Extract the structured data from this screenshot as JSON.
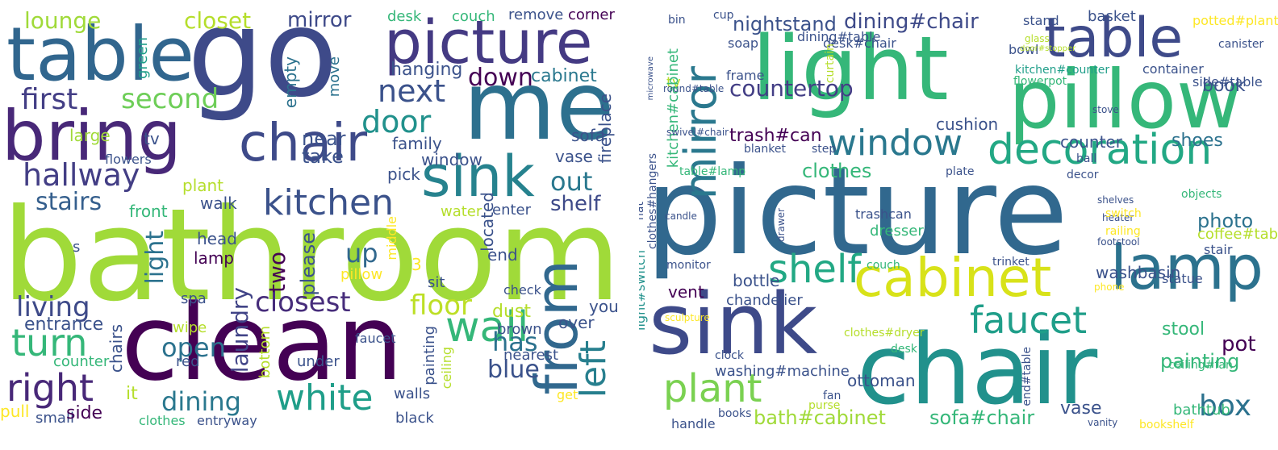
{
  "left_cloud": {
    "words": [
      {
        "text": "bathroom",
        "color": "#a0da39"
      },
      {
        "text": "clean",
        "color": "#440154"
      },
      {
        "text": "go",
        "color": "#3e4a89"
      },
      {
        "text": "me",
        "color": "#2d708e"
      },
      {
        "text": "table",
        "color": "#31668e"
      },
      {
        "text": "bring",
        "color": "#482878"
      },
      {
        "text": "picture",
        "color": "#443a83"
      },
      {
        "text": "sink",
        "color": "#26828e"
      },
      {
        "text": "chair",
        "color": "#3e4a89"
      },
      {
        "text": "from",
        "color": "#31688e"
      },
      {
        "text": "kitchen",
        "color": "#3b528b"
      },
      {
        "text": "hallway",
        "color": "#433e85"
      },
      {
        "text": "right",
        "color": "#482878"
      },
      {
        "text": "wall",
        "color": "#35b779"
      },
      {
        "text": "white",
        "color": "#1f9e89"
      },
      {
        "text": "turn",
        "color": "#35b779"
      },
      {
        "text": "left",
        "color": "#277f8e"
      },
      {
        "text": "dining",
        "color": "#2a788e"
      },
      {
        "text": "closest",
        "color": "#472d7b"
      },
      {
        "text": "door",
        "color": "#21918c"
      },
      {
        "text": "next",
        "color": "#3b528b"
      },
      {
        "text": "first",
        "color": "#433e85"
      },
      {
        "text": "second",
        "color": "#6ece58"
      },
      {
        "text": "living",
        "color": "#3e4a89"
      },
      {
        "text": "open",
        "color": "#2c728e"
      },
      {
        "text": "floor",
        "color": "#bddf26"
      },
      {
        "text": "stairs",
        "color": "#355f8d"
      },
      {
        "text": "has",
        "color": "#2c728e"
      },
      {
        "text": "blue",
        "color": "#3b528b"
      },
      {
        "text": "out",
        "color": "#2a788e"
      },
      {
        "text": "down",
        "color": "#440154"
      },
      {
        "text": "up",
        "color": "#31688e"
      },
      {
        "text": "light",
        "color": "#2c728e"
      },
      {
        "text": "laundry",
        "color": "#414487"
      },
      {
        "text": "two",
        "color": "#440154"
      },
      {
        "text": "lounge",
        "color": "#a0da39"
      },
      {
        "text": "closet",
        "color": "#b5de2b"
      },
      {
        "text": "mirror",
        "color": "#3e4a89"
      },
      {
        "text": "desk",
        "color": "#35b779"
      },
      {
        "text": "couch",
        "color": "#35b779"
      },
      {
        "text": "remove",
        "color": "#3b528b"
      },
      {
        "text": "corner",
        "color": "#440154"
      },
      {
        "text": "hanging",
        "color": "#3b528b"
      },
      {
        "text": "cabinet",
        "color": "#2a788e"
      },
      {
        "text": "green",
        "color": "#1f9e89"
      },
      {
        "text": "empty",
        "color": "#2c728e"
      },
      {
        "text": "move",
        "color": "#2c728e"
      },
      {
        "text": "near",
        "color": "#3b528b"
      },
      {
        "text": "take",
        "color": "#3b528b"
      },
      {
        "text": "family",
        "color": "#3b528b"
      },
      {
        "text": "sofa",
        "color": "#3b528b"
      },
      {
        "text": "fireplace",
        "color": "#3b528b"
      },
      {
        "text": "window",
        "color": "#3b528b"
      },
      {
        "text": "pick",
        "color": "#3b528b"
      },
      {
        "text": "vase",
        "color": "#3b528b"
      },
      {
        "text": "located",
        "color": "#3b528b"
      },
      {
        "text": "shelf",
        "color": "#3e4a89"
      },
      {
        "text": "large",
        "color": "#a0da39"
      },
      {
        "text": "tv",
        "color": "#3b528b"
      },
      {
        "text": "flowers",
        "color": "#3b528b"
      },
      {
        "text": "plant",
        "color": "#b5de2b"
      },
      {
        "text": "walk",
        "color": "#3b528b"
      },
      {
        "text": "front",
        "color": "#35b779"
      },
      {
        "text": "water",
        "color": "#b5de2b"
      },
      {
        "text": "enter",
        "color": "#3b528b"
      },
      {
        "text": "head",
        "color": "#3b528b"
      },
      {
        "text": "lamp",
        "color": "#440154"
      },
      {
        "text": "please",
        "color": "#3b528b"
      },
      {
        "text": "middle",
        "color": "#fde725"
      },
      {
        "text": "3",
        "color": "#fde725"
      },
      {
        "text": "end",
        "color": "#3b528b"
      },
      {
        "text": "s",
        "color": "#3b528b"
      },
      {
        "text": "pillow",
        "color": "#fde725"
      },
      {
        "text": "sit",
        "color": "#3b528b"
      },
      {
        "text": "check",
        "color": "#3b528b"
      },
      {
        "text": "spa",
        "color": "#3b528b"
      },
      {
        "text": "you",
        "color": "#3b528b"
      },
      {
        "text": "dust",
        "color": "#b5de2b"
      },
      {
        "text": "over",
        "color": "#3b528b"
      },
      {
        "text": "entrance",
        "color": "#3b528b"
      },
      {
        "text": "wipe",
        "color": "#b5de2b"
      },
      {
        "text": "brown",
        "color": "#3b528b"
      },
      {
        "text": "chairs",
        "color": "#3b528b"
      },
      {
        "text": "faucet",
        "color": "#3b528b"
      },
      {
        "text": "painting",
        "color": "#3b528b"
      },
      {
        "text": "counter",
        "color": "#35b779"
      },
      {
        "text": "red",
        "color": "#3b528b"
      },
      {
        "text": "bottom",
        "color": "#b5de2b"
      },
      {
        "text": "under",
        "color": "#3b528b"
      },
      {
        "text": "nearest",
        "color": "#3b528b"
      },
      {
        "text": "ceiling",
        "color": "#b5de2b"
      },
      {
        "text": "it",
        "color": "#b5de2b"
      },
      {
        "text": "walls",
        "color": "#3b528b"
      },
      {
        "text": "get",
        "color": "#fde725"
      },
      {
        "text": "pull",
        "color": "#fde725"
      },
      {
        "text": "small",
        "color": "#3b528b"
      },
      {
        "text": "side",
        "color": "#440154"
      },
      {
        "text": "black",
        "color": "#3b528b"
      },
      {
        "text": "clothes",
        "color": "#35b779"
      },
      {
        "text": "entryway",
        "color": "#3b528b"
      }
    ]
  },
  "right_cloud": {
    "words": [
      {
        "text": "picture",
        "color": "#31688e"
      },
      {
        "text": "chair",
        "color": "#21918c"
      },
      {
        "text": "light",
        "color": "#35b779"
      },
      {
        "text": "pillow",
        "color": "#35b779"
      },
      {
        "text": "sink",
        "color": "#3e4a89"
      },
      {
        "text": "table",
        "color": "#3e4a89"
      },
      {
        "text": "cabinet",
        "color": "#d8e219"
      },
      {
        "text": "lamp",
        "color": "#2c728e"
      },
      {
        "text": "decoration",
        "color": "#22a884"
      },
      {
        "text": "plant",
        "color": "#7ad151"
      },
      {
        "text": "window",
        "color": "#2a788e"
      },
      {
        "text": "shelf",
        "color": "#22a884"
      },
      {
        "text": "mirror",
        "color": "#2a788e"
      },
      {
        "text": "faucet",
        "color": "#1f9e89"
      },
      {
        "text": "box",
        "color": "#2c728e"
      },
      {
        "text": "countertop",
        "color": "#433e85"
      },
      {
        "text": "dining#chair",
        "color": "#3e4a89"
      },
      {
        "text": "nightstand",
        "color": "#3b528b"
      },
      {
        "text": "clothes",
        "color": "#35b779"
      },
      {
        "text": "trash#can",
        "color": "#440154"
      },
      {
        "text": "bath#cabinet",
        "color": "#a0da39"
      },
      {
        "text": "sofa#chair",
        "color": "#35b779"
      },
      {
        "text": "photo",
        "color": "#2c728e"
      },
      {
        "text": "pot",
        "color": "#440154"
      },
      {
        "text": "painting",
        "color": "#35b779"
      },
      {
        "text": "stool",
        "color": "#35b779"
      },
      {
        "text": "washbasin",
        "color": "#3b528b"
      },
      {
        "text": "vase",
        "color": "#3b528b"
      },
      {
        "text": "shoes",
        "color": "#2c728e"
      },
      {
        "text": "counter",
        "color": "#3b528b"
      },
      {
        "text": "cushion",
        "color": "#3b528b"
      },
      {
        "text": "bottle",
        "color": "#3b528b"
      },
      {
        "text": "vent",
        "color": "#440154"
      },
      {
        "text": "chandelier",
        "color": "#3b528b"
      },
      {
        "text": "dresser",
        "color": "#35b779"
      },
      {
        "text": "trashcan",
        "color": "#3b528b"
      },
      {
        "text": "book",
        "color": "#3b528b"
      },
      {
        "text": "basket",
        "color": "#3b528b"
      },
      {
        "text": "stand",
        "color": "#3b528b"
      },
      {
        "text": "potted#plant",
        "color": "#fde725"
      },
      {
        "text": "canister",
        "color": "#3b528b"
      },
      {
        "text": "container",
        "color": "#3b528b"
      },
      {
        "text": "side#table",
        "color": "#3b528b"
      },
      {
        "text": "kitchen#counter",
        "color": "#1f9e89"
      },
      {
        "text": "bowl",
        "color": "#3b528b"
      },
      {
        "text": "desk#chair",
        "color": "#3b528b"
      },
      {
        "text": "dining#table",
        "color": "#3b528b"
      },
      {
        "text": "soap",
        "color": "#3b528b"
      },
      {
        "text": "frame",
        "color": "#3b528b"
      },
      {
        "text": "curtain",
        "color": "#b5de2b"
      },
      {
        "text": "tv",
        "color": "#b5de2b"
      },
      {
        "text": "bin",
        "color": "#3b528b"
      },
      {
        "text": "cup",
        "color": "#3b528b"
      },
      {
        "text": "glass",
        "color": "#b5de2b"
      },
      {
        "text": "door#stopper",
        "color": "#b5de2b"
      },
      {
        "text": "microwave",
        "color": "#3b528b"
      },
      {
        "text": "kitchen#cabinet",
        "color": "#35b779"
      },
      {
        "text": "hat",
        "color": "#3b528b"
      },
      {
        "text": "clothes#hangers",
        "color": "#3b528b"
      },
      {
        "text": "light#switch",
        "color": "#21918c"
      },
      {
        "text": "round#table",
        "color": "#3b528b"
      },
      {
        "text": "flowerpot",
        "color": "#35b779"
      },
      {
        "text": "stove",
        "color": "#3b528b"
      },
      {
        "text": "swivel#chair",
        "color": "#3b528b"
      },
      {
        "text": "blanket",
        "color": "#3b528b"
      },
      {
        "text": "step",
        "color": "#3b528b"
      },
      {
        "text": "plate",
        "color": "#3b528b"
      },
      {
        "text": "ball",
        "color": "#3b528b"
      },
      {
        "text": "decor",
        "color": "#3b528b"
      },
      {
        "text": "table#lamp",
        "color": "#35b779"
      },
      {
        "text": "shelves",
        "color": "#3b528b"
      },
      {
        "text": "objects",
        "color": "#35b779"
      },
      {
        "text": "candle",
        "color": "#3b528b"
      },
      {
        "text": "drawer",
        "color": "#3b528b"
      },
      {
        "text": "heater",
        "color": "#3b528b"
      },
      {
        "text": "switch",
        "color": "#fde725"
      },
      {
        "text": "railing",
        "color": "#fde725"
      },
      {
        "text": "coffee#table",
        "color": "#b5de2b"
      },
      {
        "text": "footstool",
        "color": "#3b528b"
      },
      {
        "text": "stair",
        "color": "#3b528b"
      },
      {
        "text": "monitor",
        "color": "#3b528b"
      },
      {
        "text": "couch",
        "color": "#35b779"
      },
      {
        "text": "trinket",
        "color": "#3b528b"
      },
      {
        "text": "statue",
        "color": "#3b528b"
      },
      {
        "text": "phone",
        "color": "#fde725"
      },
      {
        "text": "sculpture",
        "color": "#fde725"
      },
      {
        "text": "desk",
        "color": "#35b779"
      },
      {
        "text": "clothes#dryer",
        "color": "#b5de2b"
      },
      {
        "text": "ceiling#fan",
        "color": "#35b779"
      },
      {
        "text": "clock",
        "color": "#3b528b"
      },
      {
        "text": "washing#machine",
        "color": "#3b528b"
      },
      {
        "text": "ottoman",
        "color": "#3b528b"
      },
      {
        "text": "fan",
        "color": "#3b528b"
      },
      {
        "text": "purse",
        "color": "#b5de2b"
      },
      {
        "text": "end#table",
        "color": "#3b528b"
      },
      {
        "text": "bathtub",
        "color": "#35b779"
      },
      {
        "text": "handle",
        "color": "#3b528b"
      },
      {
        "text": "books",
        "color": "#3b528b"
      },
      {
        "text": "vanity",
        "color": "#3b528b"
      },
      {
        "text": "bookshelf",
        "color": "#fde725"
      }
    ]
  }
}
